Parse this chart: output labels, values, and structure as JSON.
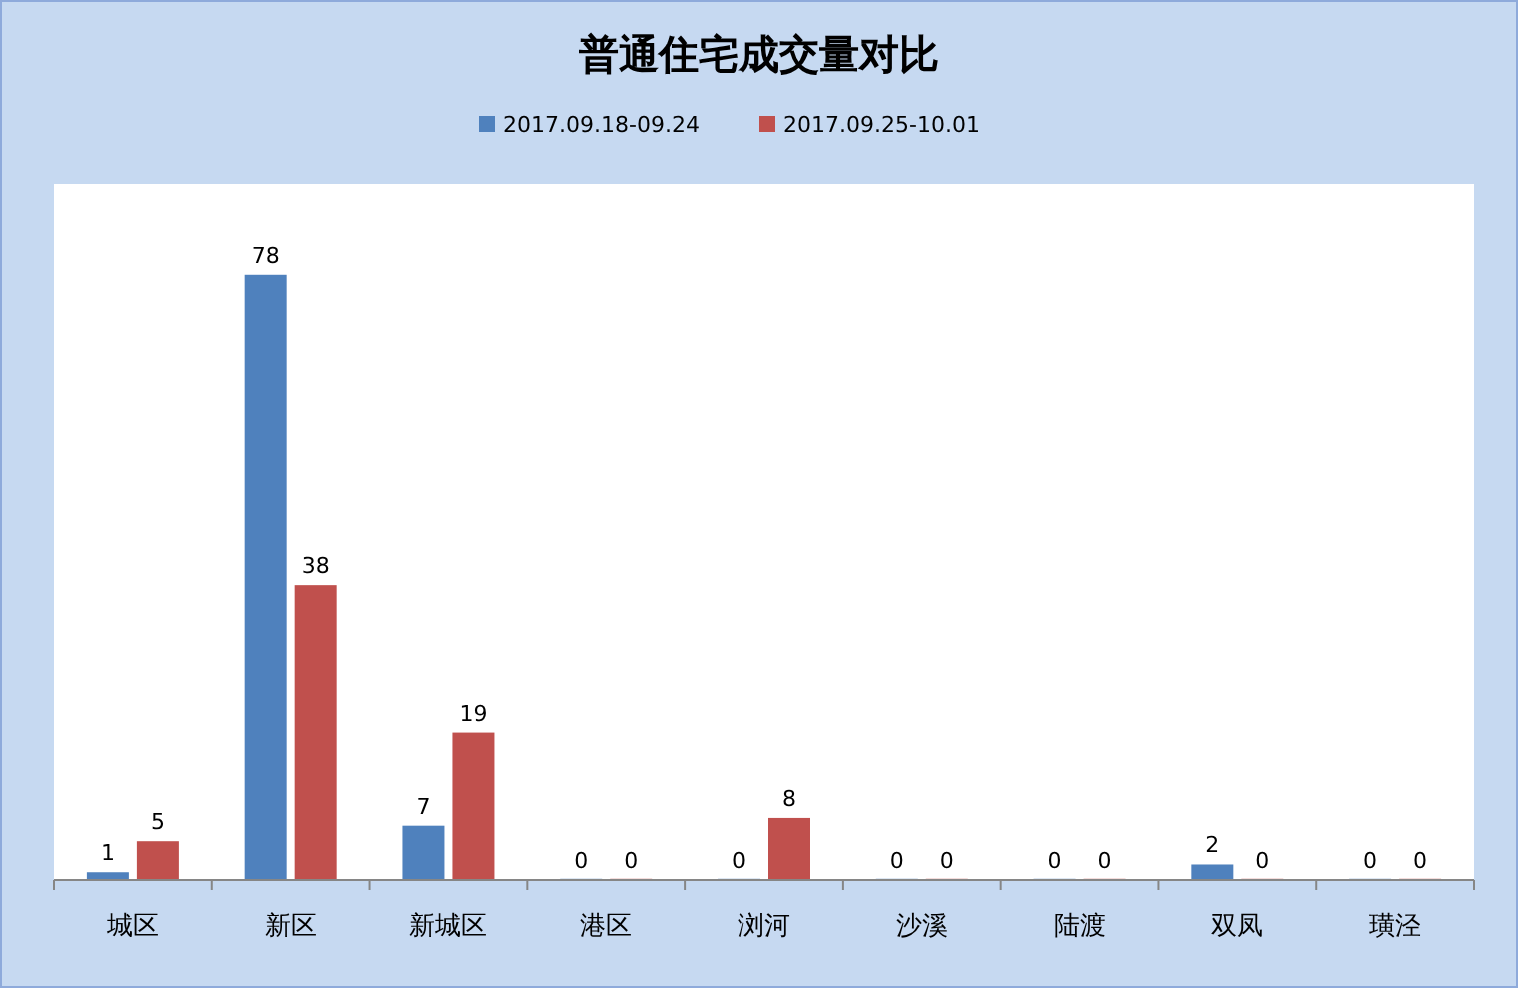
{
  "chart_data": {
    "type": "bar",
    "title": "普通住宅成交量对比",
    "categories": [
      "城区",
      "新区",
      "新城区",
      "港区",
      "浏河",
      "沙溪",
      "陆渡",
      "双凤",
      "璜泾"
    ],
    "series": [
      {
        "name": "2017.09.18-09.24",
        "color": "#4f81bd",
        "values": [
          1,
          78,
          7,
          0,
          0,
          0,
          0,
          2,
          0
        ]
      },
      {
        "name": "2017.09.25-10.01",
        "color": "#c0504d",
        "values": [
          5,
          38,
          19,
          0,
          8,
          0,
          0,
          0,
          0
        ]
      }
    ],
    "data_labels": true,
    "legend": "top"
  }
}
